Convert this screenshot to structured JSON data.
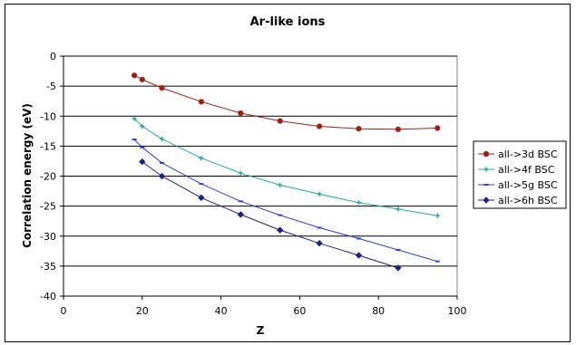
{
  "chart_data": {
    "type": "line",
    "title": "Ar-like ions",
    "xlabel": "Z",
    "ylabel": "Correlation energy (eV)",
    "xlim": [
      0,
      100
    ],
    "ylim": [
      -40,
      0
    ],
    "xticks": [
      0,
      20,
      40,
      60,
      80,
      100
    ],
    "yticks": [
      0,
      -5,
      -10,
      -15,
      -20,
      -25,
      -30,
      -35,
      -40
    ],
    "grid": "horizontal",
    "legend_position": "right",
    "series": [
      {
        "name": "all->3d BSC",
        "color": "#a01e14",
        "marker": "circle",
        "x": [
          18,
          20,
          25,
          35,
          45,
          55,
          65,
          75,
          85,
          95
        ],
        "y": [
          -3.2,
          -3.9,
          -5.3,
          -7.6,
          -9.5,
          -10.8,
          -11.7,
          -12.1,
          -12.2,
          -12.0
        ]
      },
      {
        "name": "all->4f BSC",
        "color": "#20a89c",
        "marker": "cross",
        "x": [
          18,
          20,
          25,
          35,
          45,
          55,
          65,
          75,
          85,
          95
        ],
        "y": [
          -10.4,
          -11.7,
          -13.8,
          -17.0,
          -19.5,
          -21.5,
          -23.0,
          -24.4,
          -25.5,
          -26.6
        ]
      },
      {
        "name": "all->5g BSC",
        "color": "#2a3ee8",
        "marker": "dash",
        "x": [
          18,
          20,
          25,
          35,
          45,
          55,
          65,
          75,
          85,
          95
        ],
        "y": [
          -13.9,
          -15.2,
          -17.8,
          -21.3,
          -24.2,
          -26.5,
          -28.6,
          -30.4,
          -32.3,
          -34.2
        ]
      },
      {
        "name": "all->6h BSC",
        "color": "#1b237e",
        "marker": "diamond",
        "x": [
          20,
          25,
          35,
          45,
          55,
          65,
          75,
          85
        ],
        "y": [
          -17.6,
          -20.0,
          -23.6,
          -26.4,
          -29.0,
          -31.2,
          -33.2,
          -35.3
        ]
      }
    ]
  }
}
